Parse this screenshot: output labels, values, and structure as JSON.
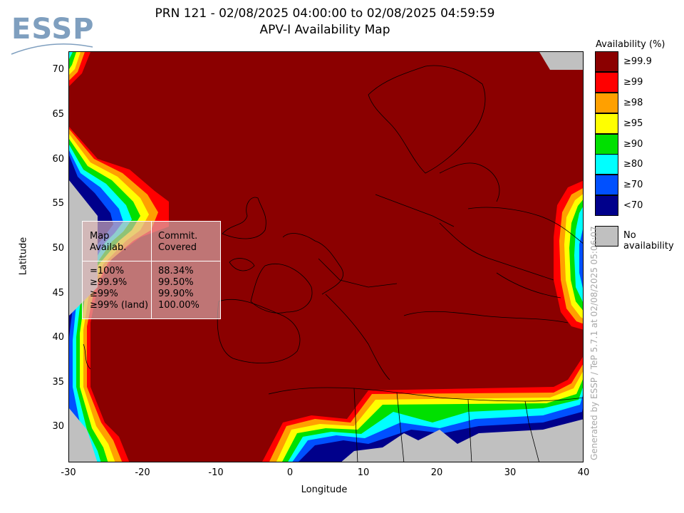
{
  "header": {
    "logo_text": "ESSP",
    "title_line1": "PRN 121 - 02/08/2025 04:00:00 to 02/08/2025 04:59:59",
    "title_line2": "APV-I Availability Map"
  },
  "axes": {
    "xlabel": "Longitude",
    "ylabel": "Latitude",
    "x_ticks": [
      "-30",
      "-20",
      "-10",
      "0",
      "10",
      "20",
      "30",
      "40"
    ],
    "y_ticks": [
      "70",
      "65",
      "60",
      "55",
      "50",
      "45",
      "40",
      "35",
      "30"
    ],
    "xlim": [
      -30,
      40
    ],
    "ylim": [
      26,
      72
    ]
  },
  "legend": {
    "title": "Availability (%)",
    "items": [
      {
        "label": "≥99.9",
        "color": "#8b0000"
      },
      {
        "label": "≥99",
        "color": "#ff0000"
      },
      {
        "label": "≥98",
        "color": "#ffa000"
      },
      {
        "label": "≥95",
        "color": "#ffff00"
      },
      {
        "label": "≥90",
        "color": "#00e000"
      },
      {
        "label": "≥80",
        "color": "#00ffff"
      },
      {
        "label": "≥70",
        "color": "#0050ff"
      },
      {
        "label": "<70",
        "color": "#00008b"
      }
    ],
    "no_availability_label": "No availability",
    "no_availability_color": "#c0c0c0"
  },
  "stats": {
    "col1_header": "Map\nAvailab.",
    "col2_header": "Commit.\nCovered",
    "rows": [
      {
        "map": "=100%",
        "covered": "88.34%"
      },
      {
        "map": "≥99.9%",
        "covered": "99.50%"
      },
      {
        "map": "≥99%",
        "covered": "99.90%"
      },
      {
        "map": "≥99% (land)",
        "covered": "100.00%"
      }
    ]
  },
  "footer": {
    "generated": "Generated by ESSP / TeP 5.7.1 at 02/08/2025 05:06:07"
  }
}
